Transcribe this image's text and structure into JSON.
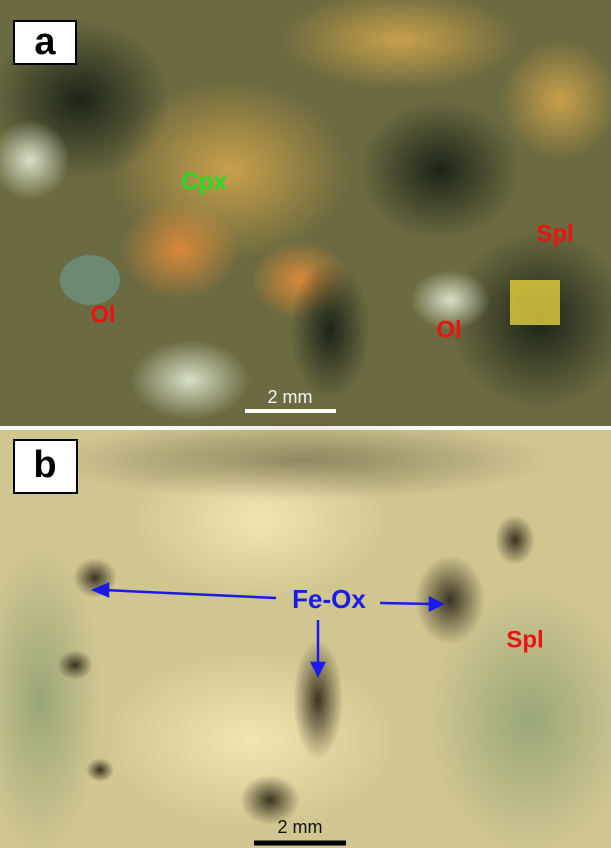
{
  "panels": [
    {
      "label": "a",
      "annotations": [
        "Cpx",
        "Spl",
        "Ol",
        "Ol"
      ],
      "scale_bar": "2 mm"
    },
    {
      "label": "b",
      "annotations": [
        "Fe-Ox",
        "Spl"
      ],
      "scale_bar": "2 mm"
    }
  ]
}
